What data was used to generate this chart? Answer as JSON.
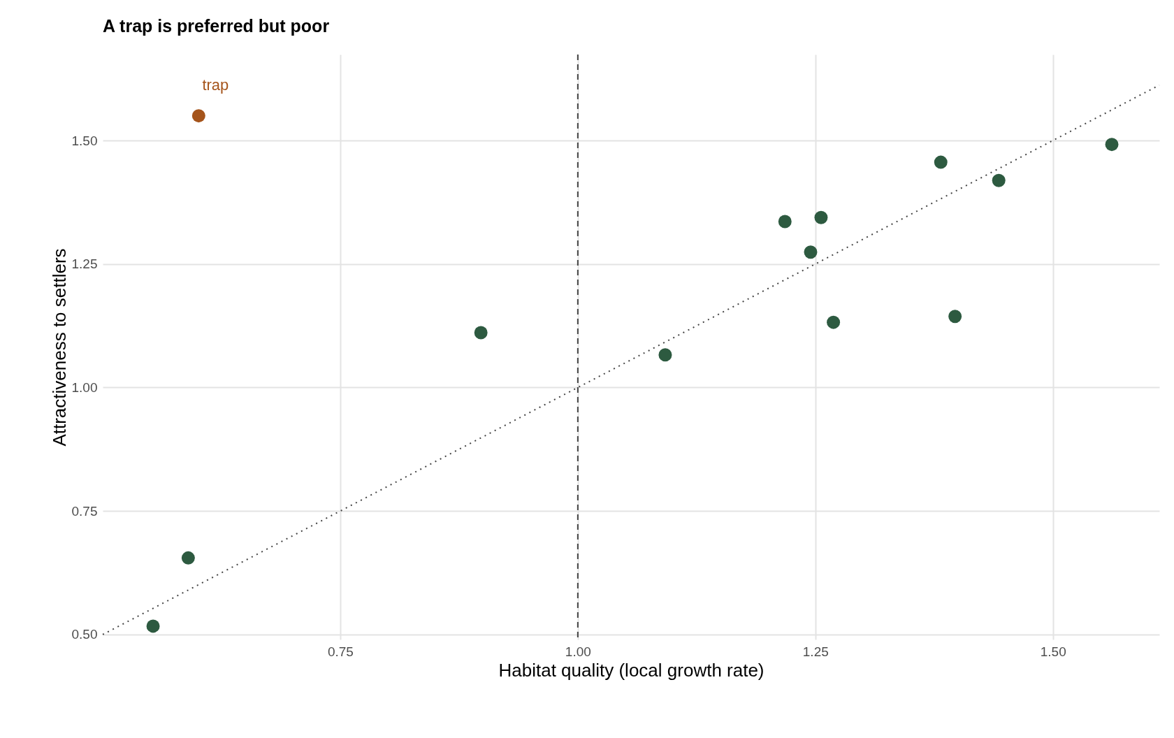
{
  "chart_data": {
    "type": "scatter",
    "title": "A trap is preferred but poor",
    "xlabel": "Habitat quality (local growth rate)",
    "ylabel": "Attractiveness to settlers",
    "xlim": [
      0.5,
      1.612
    ],
    "ylim": [
      0.49,
      1.674
    ],
    "xticks": [
      0.75,
      {
        "value": 1,
        "label": "1.00"
      },
      1.25,
      {
        "value": 1.5,
        "label": "1.50"
      }
    ],
    "yticks": [
      {
        "value": 0.5,
        "label": "0.50"
      },
      0.75,
      {
        "value": 1,
        "label": "1.00"
      },
      1.25,
      {
        "value": 1.5,
        "label": "1.50"
      }
    ],
    "grid": true,
    "legend": false,
    "marker": "circle",
    "series": [
      {
        "color": "#2d5a40",
        "x": [
          0.553,
          0.59,
          0.898,
          1.092,
          1.218,
          1.256,
          1.245,
          1.269,
          1.382,
          1.397,
          1.443,
          1.562
        ],
        "values": [
          0.517,
          0.655,
          1.111,
          1.066,
          1.336,
          1.344,
          1.274,
          1.132,
          1.456,
          1.144,
          1.419,
          1.492
        ]
      },
      {
        "color": "#a5541b",
        "x": [
          0.601
        ],
        "values": [
          1.55
        ]
      },
      {
        "type": "line",
        "marker": "none",
        "line_style": "dotted",
        "color": "#444444",
        "x": [
          0.5,
          1.612
        ],
        "values": [
          0.5,
          1.612
        ]
      }
    ],
    "ref_lines": [
      {
        "axis": "x",
        "value": 1,
        "line_style": "dashed",
        "color": "#444444"
      }
    ],
    "annotations": [
      {
        "text": "trap",
        "x": 0.601,
        "y": 1.55
      }
    ]
  }
}
